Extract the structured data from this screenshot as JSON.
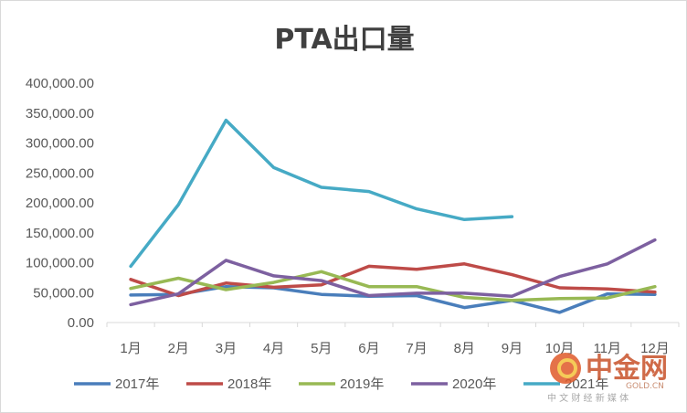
{
  "chart_data": {
    "type": "line",
    "title": "PTA出口量",
    "xlabel": "",
    "ylabel": "",
    "categories": [
      "1月",
      "2月",
      "3月",
      "4月",
      "5月",
      "6月",
      "7月",
      "8月",
      "9月",
      "10月",
      "11月",
      "12月"
    ],
    "ylim": [
      0,
      400000
    ],
    "yticks": [
      "0.00",
      "50,000.00",
      "100,000.00",
      "150,000.00",
      "200,000.00",
      "250,000.00",
      "300,000.00",
      "350,000.00",
      "400,000.00"
    ],
    "grid": false,
    "legend_position": "bottom",
    "series": [
      {
        "name": "2017年",
        "color": "#4a7ebb",
        "values": [
          46000,
          47000,
          60000,
          58000,
          47000,
          44000,
          45000,
          25000,
          37000,
          17000,
          48000,
          47000
        ]
      },
      {
        "name": "2018年",
        "color": "#be4b48",
        "values": [
          72000,
          45000,
          66000,
          59000,
          63000,
          94000,
          89000,
          98000,
          80000,
          58000,
          56000,
          51000
        ]
      },
      {
        "name": "2019年",
        "color": "#98b954",
        "values": [
          57000,
          74000,
          55000,
          67000,
          85000,
          60000,
          60000,
          42000,
          37000,
          40000,
          41000,
          60000
        ]
      },
      {
        "name": "2020年",
        "color": "#7d60a0",
        "values": [
          30000,
          48000,
          104000,
          78000,
          70000,
          45000,
          49000,
          49000,
          44000,
          77000,
          98000,
          138000
        ]
      },
      {
        "name": "2021年",
        "color": "#46aac5",
        "values": [
          94000,
          197000,
          338000,
          259000,
          226000,
          219000,
          190000,
          172000,
          177000,
          null,
          null,
          null
        ]
      }
    ]
  },
  "watermark": {
    "brand": "中金网",
    "url": "GOLD.CN",
    "slogan": "中 文 财 经 新 媒 体"
  }
}
